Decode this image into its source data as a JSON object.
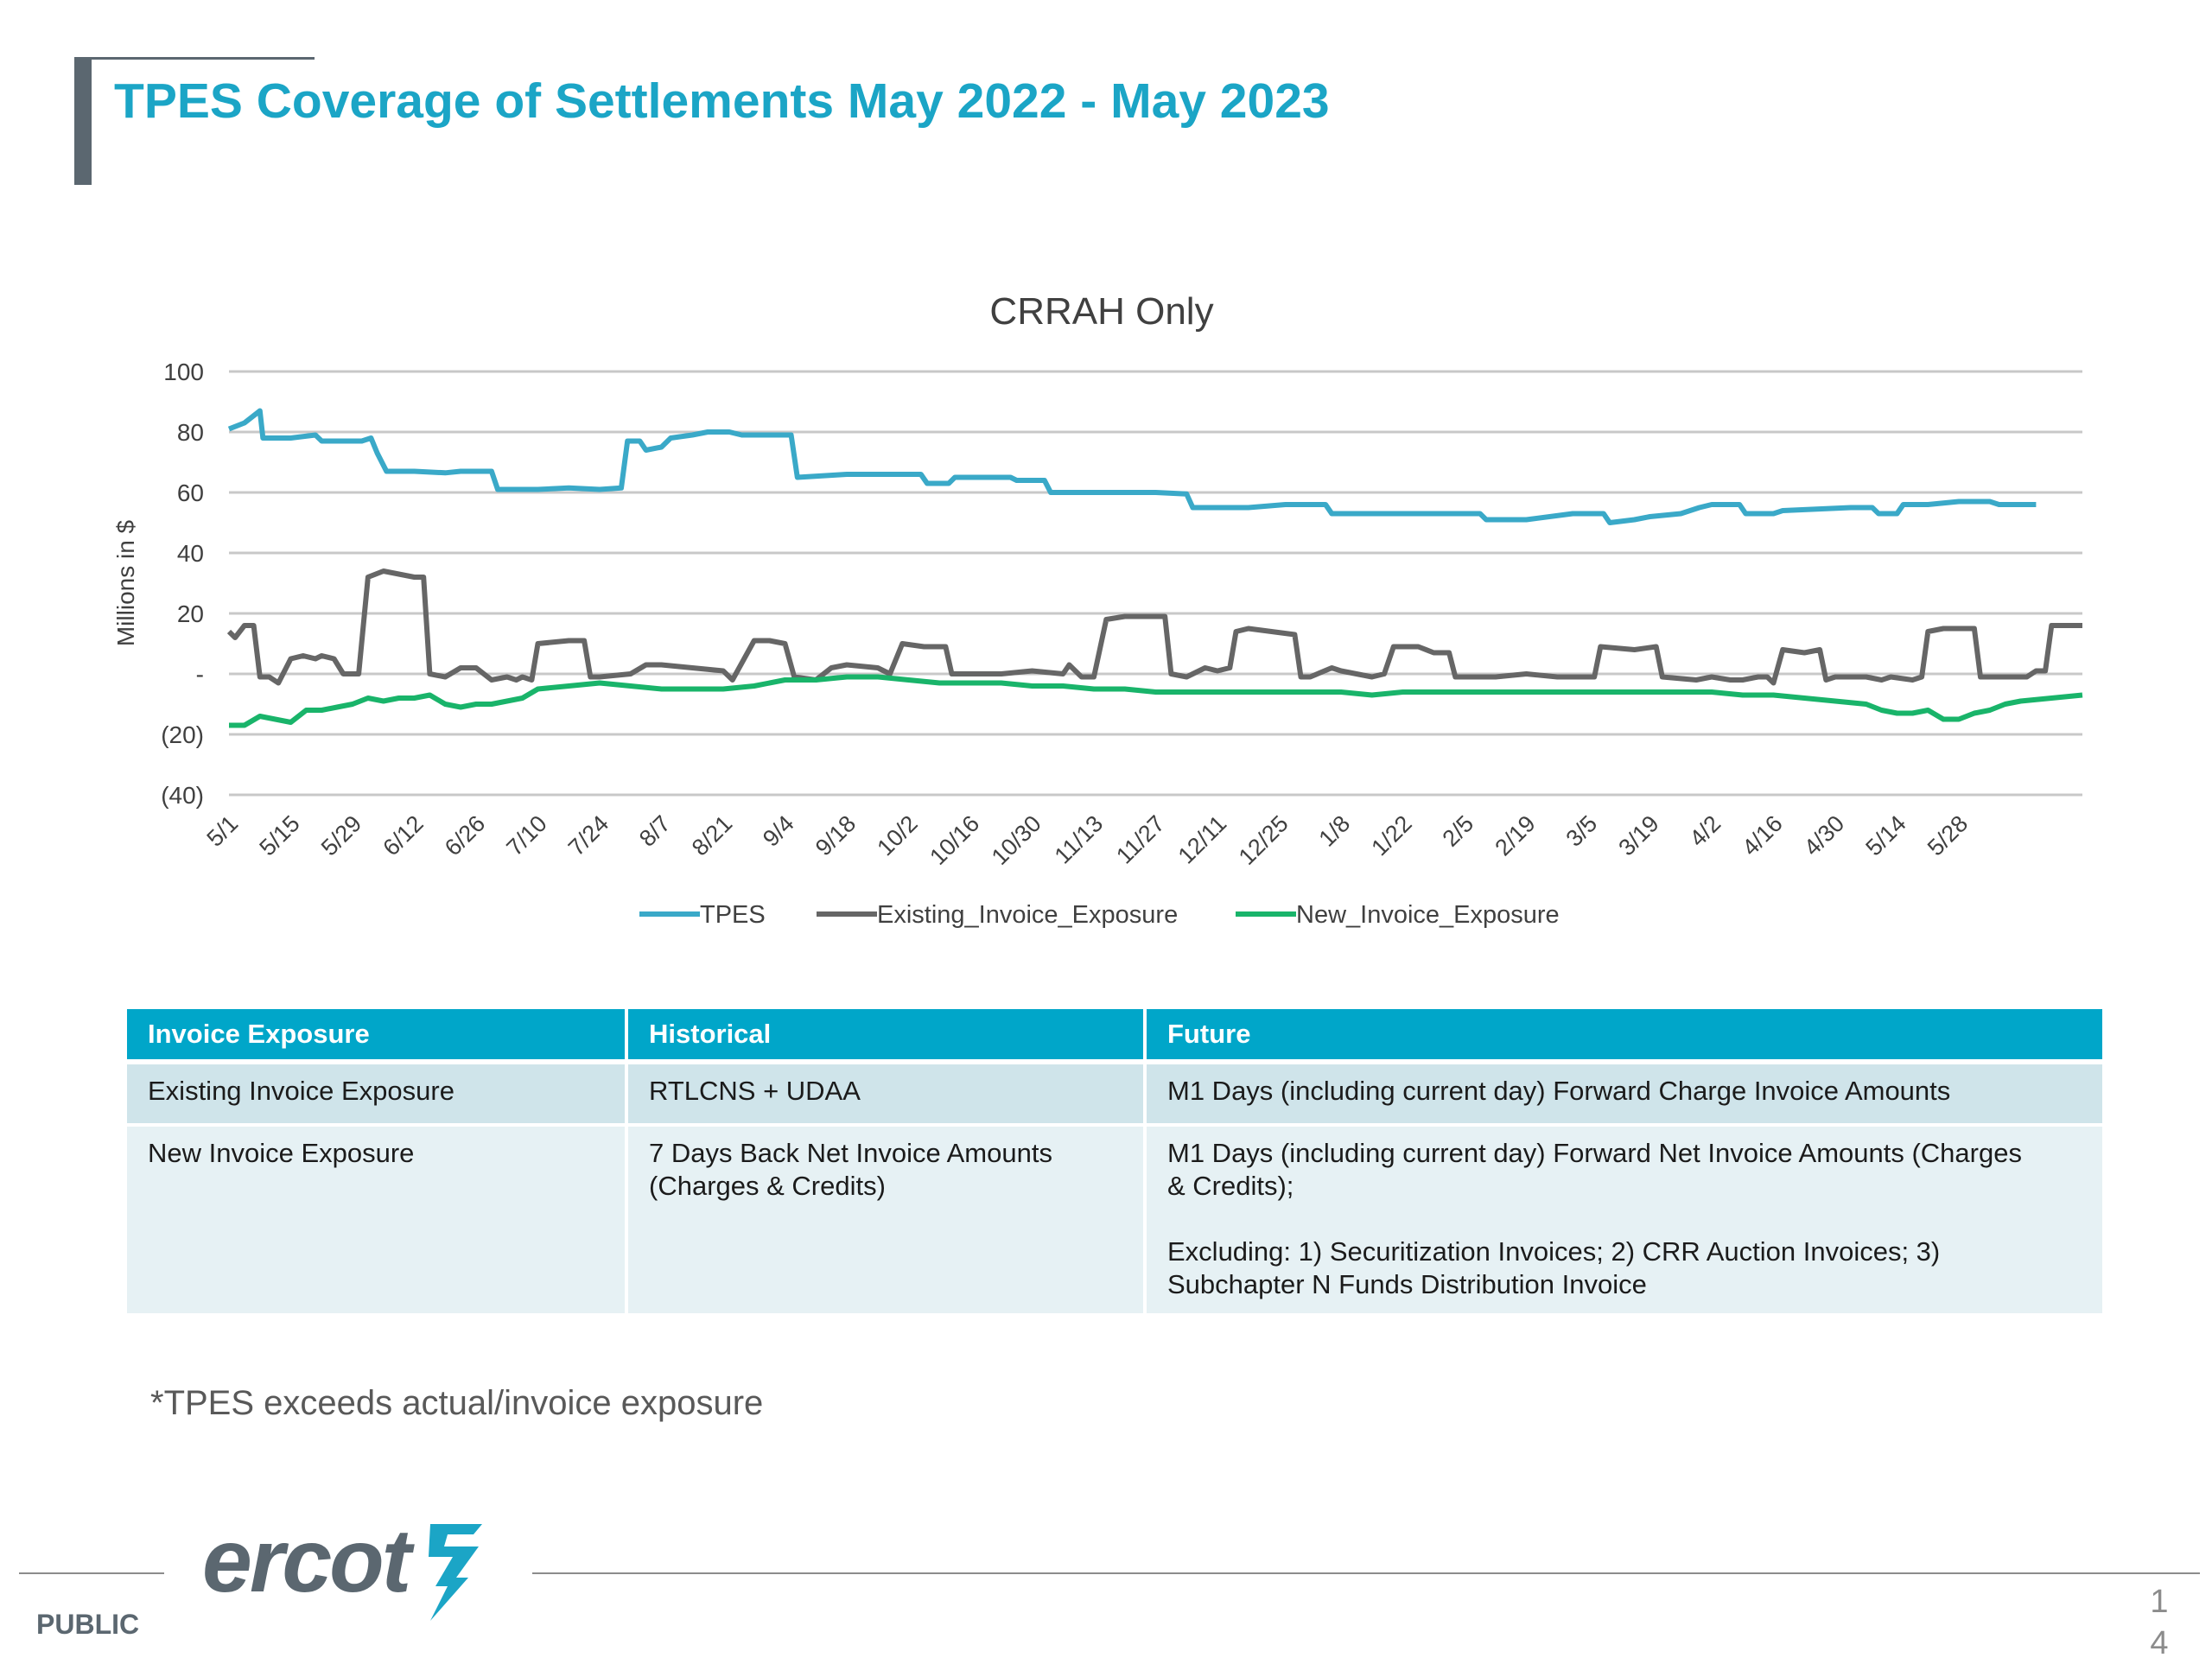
{
  "page": {
    "title": "TPES Coverage of Settlements May 2022 -  May 2023",
    "footnote": "*TPES exceeds actual/invoice exposure",
    "footer_label": "PUBLIC",
    "logo_text": "ercot",
    "page_number_line1": "1",
    "page_number_line2": "4"
  },
  "chart_data": {
    "type": "line",
    "title": "CRRAH Only",
    "ylabel": "Millions in $",
    "ylim": [
      -40,
      100
    ],
    "yticks": [
      100,
      80,
      60,
      40,
      20,
      0,
      -20,
      -40
    ],
    "ytick_labels": [
      "100",
      "80",
      "60",
      "40",
      "20",
      "-",
      "(20)",
      "(40)"
    ],
    "x_tick_labels": [
      "5/1",
      "5/15",
      "5/29",
      "6/12",
      "6/26",
      "7/10",
      "7/24",
      "8/7",
      "8/21",
      "9/4",
      "9/18",
      "10/2",
      "10/16",
      "10/30",
      "11/13",
      "11/27",
      "12/11",
      "12/25",
      "1/8",
      "1/22",
      "2/5",
      "2/19",
      "3/5",
      "3/19",
      "4/2",
      "4/16",
      "4/30",
      "5/14",
      "5/28"
    ],
    "x_tick_weeks": [
      0,
      2,
      4,
      6,
      8,
      10,
      12,
      14,
      16,
      18,
      20,
      22,
      24,
      26,
      28,
      30,
      32,
      34,
      36,
      38,
      40,
      42,
      44,
      46,
      48,
      50,
      52,
      54,
      56
    ],
    "legend_position": "bottom",
    "grid": true,
    "series": [
      {
        "name": "TPES",
        "color": "#3aa9c8",
        "points": [
          [
            0,
            81
          ],
          [
            0.5,
            83
          ],
          [
            1,
            87
          ],
          [
            1.1,
            78
          ],
          [
            2,
            78
          ],
          [
            2.8,
            79
          ],
          [
            3,
            77
          ],
          [
            4.3,
            77
          ],
          [
            4.6,
            78
          ],
          [
            4.8,
            73
          ],
          [
            5.1,
            67
          ],
          [
            6,
            67
          ],
          [
            7,
            66.5
          ],
          [
            7.5,
            67
          ],
          [
            8.5,
            67
          ],
          [
            8.7,
            61
          ],
          [
            10,
            61
          ],
          [
            11,
            61.5
          ],
          [
            12,
            61
          ],
          [
            12.7,
            61.5
          ],
          [
            12.9,
            77
          ],
          [
            13.3,
            77
          ],
          [
            13.5,
            74
          ],
          [
            14,
            75
          ],
          [
            14.3,
            78
          ],
          [
            15,
            79
          ],
          [
            15.5,
            80
          ],
          [
            16.2,
            80
          ],
          [
            16.6,
            79
          ],
          [
            18.2,
            79
          ],
          [
            18.4,
            65
          ],
          [
            20,
            66
          ],
          [
            21.5,
            66
          ],
          [
            22.4,
            66
          ],
          [
            22.6,
            63
          ],
          [
            23.3,
            63
          ],
          [
            23.5,
            65
          ],
          [
            25.3,
            65
          ],
          [
            25.5,
            64
          ],
          [
            26.4,
            64
          ],
          [
            26.6,
            60
          ],
          [
            28,
            60
          ],
          [
            30,
            60
          ],
          [
            31,
            59.5
          ],
          [
            31.2,
            55
          ],
          [
            33,
            55
          ],
          [
            34.2,
            56
          ],
          [
            35.5,
            56
          ],
          [
            35.7,
            53
          ],
          [
            37,
            53
          ],
          [
            39,
            53
          ],
          [
            40.5,
            53
          ],
          [
            40.7,
            51
          ],
          [
            42,
            51
          ],
          [
            43.5,
            53
          ],
          [
            44.5,
            53
          ],
          [
            44.7,
            50
          ],
          [
            45.5,
            51
          ],
          [
            46,
            52
          ],
          [
            47,
            53
          ],
          [
            47.6,
            55
          ],
          [
            48,
            56
          ],
          [
            48.9,
            56
          ],
          [
            49.1,
            53
          ],
          [
            50,
            53
          ],
          [
            50.3,
            54
          ],
          [
            52.5,
            55
          ],
          [
            53.2,
            55
          ],
          [
            53.4,
            53
          ],
          [
            54,
            53
          ],
          [
            54.2,
            56
          ],
          [
            55,
            56
          ],
          [
            56,
            57
          ],
          [
            57,
            57
          ],
          [
            57.3,
            56
          ],
          [
            58,
            56
          ],
          [
            58.5,
            56
          ]
        ]
      },
      {
        "name": "Existing_Invoice_Exposure",
        "color": "#666666",
        "points": [
          [
            0,
            14
          ],
          [
            0.2,
            12
          ],
          [
            0.5,
            16
          ],
          [
            0.8,
            16
          ],
          [
            1,
            -1
          ],
          [
            1.3,
            -1
          ],
          [
            1.6,
            -3
          ],
          [
            2,
            5
          ],
          [
            2.4,
            6
          ],
          [
            2.8,
            5
          ],
          [
            3,
            6
          ],
          [
            3.4,
            5
          ],
          [
            3.7,
            0
          ],
          [
            4.2,
            0
          ],
          [
            4.5,
            32
          ],
          [
            5,
            34
          ],
          [
            5.5,
            33
          ],
          [
            6,
            32
          ],
          [
            6.3,
            32
          ],
          [
            6.5,
            0
          ],
          [
            7,
            -1
          ],
          [
            7.5,
            2
          ],
          [
            8,
            2
          ],
          [
            8.5,
            -2
          ],
          [
            9,
            -1
          ],
          [
            9.3,
            -2
          ],
          [
            9.5,
            -1
          ],
          [
            9.8,
            -2
          ],
          [
            10,
            10
          ],
          [
            11,
            11
          ],
          [
            11.5,
            11
          ],
          [
            11.7,
            -1
          ],
          [
            12,
            -1
          ],
          [
            13,
            0
          ],
          [
            13.5,
            3
          ],
          [
            14,
            3
          ],
          [
            15,
            2
          ],
          [
            16,
            1
          ],
          [
            16.3,
            -2
          ],
          [
            17,
            11
          ],
          [
            17.5,
            11
          ],
          [
            18,
            10
          ],
          [
            18.3,
            -1
          ],
          [
            19,
            -2
          ],
          [
            19.5,
            2
          ],
          [
            20,
            3
          ],
          [
            21,
            2
          ],
          [
            21.4,
            0
          ],
          [
            21.8,
            10
          ],
          [
            22.5,
            9
          ],
          [
            23.2,
            9
          ],
          [
            23.4,
            0
          ],
          [
            25,
            0
          ],
          [
            26,
            1
          ],
          [
            27,
            0
          ],
          [
            27.2,
            3
          ],
          [
            27.6,
            -1
          ],
          [
            28,
            -1
          ],
          [
            28.4,
            18
          ],
          [
            29,
            19
          ],
          [
            30.3,
            19
          ],
          [
            30.5,
            0
          ],
          [
            31,
            -1
          ],
          [
            31.6,
            2
          ],
          [
            32,
            1
          ],
          [
            32.4,
            2
          ],
          [
            32.6,
            14
          ],
          [
            33,
            15
          ],
          [
            34.5,
            13
          ],
          [
            34.7,
            -1
          ],
          [
            35,
            -1
          ],
          [
            35.7,
            2
          ],
          [
            36,
            1
          ],
          [
            37,
            -1
          ],
          [
            37.4,
            0
          ],
          [
            37.7,
            9
          ],
          [
            38.5,
            9
          ],
          [
            39,
            7
          ],
          [
            39.5,
            7
          ],
          [
            39.7,
            -1
          ],
          [
            41,
            -1
          ],
          [
            42,
            0
          ],
          [
            43,
            -1
          ],
          [
            44.2,
            -1
          ],
          [
            44.4,
            9
          ],
          [
            45.5,
            8
          ],
          [
            46.2,
            9
          ],
          [
            46.4,
            -1
          ],
          [
            47.5,
            -2
          ],
          [
            48,
            -1
          ],
          [
            48.6,
            -2
          ],
          [
            49,
            -2
          ],
          [
            49.5,
            -1
          ],
          [
            49.8,
            -1
          ],
          [
            50,
            -3
          ],
          [
            50.3,
            8
          ],
          [
            51,
            7
          ],
          [
            51.5,
            8
          ],
          [
            51.7,
            -2
          ],
          [
            52,
            -1
          ],
          [
            53,
            -1
          ],
          [
            53.5,
            -2
          ],
          [
            53.8,
            -1
          ],
          [
            54.5,
            -2
          ],
          [
            54.8,
            -1
          ],
          [
            55,
            14
          ],
          [
            55.5,
            15
          ],
          [
            56.5,
            15
          ],
          [
            56.7,
            -1
          ],
          [
            57,
            -1
          ],
          [
            57.5,
            -1
          ],
          [
            58,
            -1
          ],
          [
            58.2,
            -1
          ],
          [
            58.5,
            1
          ],
          [
            58.8,
            1
          ],
          [
            59,
            16
          ],
          [
            60,
            16
          ]
        ]
      },
      {
        "name": "New_Invoice_Exposure",
        "color": "#19b46a",
        "points": [
          [
            0,
            -17
          ],
          [
            0.5,
            -17
          ],
          [
            1,
            -14
          ],
          [
            1.5,
            -15
          ],
          [
            2,
            -16
          ],
          [
            2.5,
            -12
          ],
          [
            3,
            -12
          ],
          [
            3.5,
            -11
          ],
          [
            4,
            -10
          ],
          [
            4.5,
            -8
          ],
          [
            5,
            -9
          ],
          [
            5.5,
            -8
          ],
          [
            6,
            -8
          ],
          [
            6.5,
            -7
          ],
          [
            7,
            -10
          ],
          [
            7.5,
            -11
          ],
          [
            8,
            -10
          ],
          [
            8.5,
            -10
          ],
          [
            9,
            -9
          ],
          [
            9.5,
            -8
          ],
          [
            10,
            -5
          ],
          [
            11,
            -4
          ],
          [
            12,
            -3
          ],
          [
            13,
            -4
          ],
          [
            14,
            -5
          ],
          [
            15,
            -5
          ],
          [
            16,
            -5
          ],
          [
            17,
            -4
          ],
          [
            18,
            -2
          ],
          [
            19,
            -2
          ],
          [
            20,
            -1
          ],
          [
            21,
            -1
          ],
          [
            22,
            -2
          ],
          [
            23,
            -3
          ],
          [
            24,
            -3
          ],
          [
            25,
            -3
          ],
          [
            26,
            -4
          ],
          [
            27,
            -4
          ],
          [
            28,
            -5
          ],
          [
            29,
            -5
          ],
          [
            30,
            -6
          ],
          [
            31,
            -6
          ],
          [
            32,
            -6
          ],
          [
            33,
            -6
          ],
          [
            34,
            -6
          ],
          [
            35,
            -6
          ],
          [
            36,
            -6
          ],
          [
            37,
            -7
          ],
          [
            38,
            -6
          ],
          [
            39,
            -6
          ],
          [
            40,
            -6
          ],
          [
            41,
            -6
          ],
          [
            42,
            -6
          ],
          [
            43,
            -6
          ],
          [
            44,
            -6
          ],
          [
            45,
            -6
          ],
          [
            46,
            -6
          ],
          [
            47,
            -6
          ],
          [
            48,
            -6
          ],
          [
            49,
            -7
          ],
          [
            50,
            -7
          ],
          [
            51,
            -8
          ],
          [
            52,
            -9
          ],
          [
            53,
            -10
          ],
          [
            53.5,
            -12
          ],
          [
            54,
            -13
          ],
          [
            54.5,
            -13
          ],
          [
            55,
            -12
          ],
          [
            55.5,
            -15
          ],
          [
            56,
            -15
          ],
          [
            56.5,
            -13
          ],
          [
            57,
            -12
          ],
          [
            57.5,
            -10
          ],
          [
            58,
            -9
          ],
          [
            59,
            -8
          ],
          [
            60,
            -7
          ]
        ]
      }
    ]
  },
  "table": {
    "headers": [
      "Invoice Exposure",
      "Historical",
      "Future"
    ],
    "rows": [
      {
        "label": "Existing Invoice Exposure",
        "historical": "RTLCNS + UDAA",
        "future": "M1 Days (including current day) Forward Charge Invoice Amounts"
      },
      {
        "label": "New Invoice Exposure",
        "historical_line1": "7 Days Back Net Invoice Amounts",
        "historical_line2": "(Charges & Credits)",
        "future_line1": "M1 Days (including current day) Forward  Net Invoice Amounts (Charges",
        "future_line2": "& Credits);",
        "future_line3": "Excluding: 1) Securitization Invoices; 2) CRR Auction Invoices; 3)",
        "future_line4": "Subchapter N Funds Distribution Invoice"
      }
    ]
  }
}
